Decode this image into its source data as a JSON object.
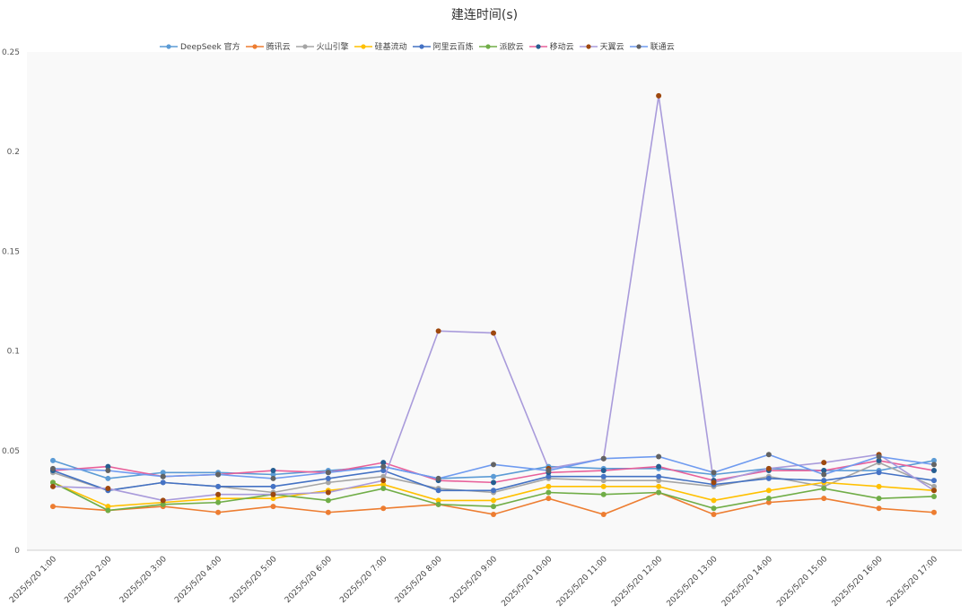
{
  "chart_data": {
    "type": "line",
    "title": "建连时间(s)",
    "xlabel": "",
    "ylabel": "",
    "ylim": [
      0,
      0.25
    ],
    "yticks": [
      "0",
      "0.05",
      "0.1",
      "0.15",
      "0.2",
      "0.25"
    ],
    "ytick_values": [
      0,
      0.05,
      0.1,
      0.15,
      0.2,
      0.25
    ],
    "legend_position": "top",
    "grid": false,
    "categories": [
      "2025/5/20 1:00",
      "2025/5/20 2:00",
      "2025/5/20 3:00",
      "2025/5/20 4:00",
      "2025/5/20 5:00",
      "2025/5/20 6:00",
      "2025/5/20 7:00",
      "2025/5/20 8:00",
      "2025/5/20 9:00",
      "2025/5/20 10:00",
      "2025/5/20 11:00",
      "2025/5/20 12:00",
      "2025/5/20 13:00",
      "2025/5/20 14:00",
      "2025/5/20 15:00",
      "2025/5/20 16:00",
      "2025/5/20 17:00"
    ],
    "series": [
      {
        "name": "DeepSeek 官方",
        "line_color": "#5B9BD5",
        "marker_color": "#5B9BD5",
        "values": [
          0.045,
          0.036,
          0.039,
          0.039,
          0.038,
          0.04,
          0.042,
          0.036,
          0.037,
          0.042,
          0.041,
          0.041,
          0.038,
          0.041,
          0.04,
          0.04,
          0.045
        ]
      },
      {
        "name": "腾讯云",
        "line_color": "#ED7D31",
        "marker_color": "#ED7D31",
        "values": [
          0.022,
          0.02,
          0.022,
          0.019,
          0.022,
          0.019,
          0.021,
          0.023,
          0.018,
          0.026,
          0.018,
          0.029,
          0.018,
          0.024,
          0.026,
          0.021,
          0.019
        ]
      },
      {
        "name": "火山引擎",
        "line_color": "#A5A5A5",
        "marker_color": "#A5A5A5",
        "values": [
          0.039,
          0.03,
          0.034,
          0.032,
          0.029,
          0.034,
          0.037,
          0.031,
          0.029,
          0.036,
          0.035,
          0.035,
          0.032,
          0.037,
          0.032,
          0.044,
          0.032
        ]
      },
      {
        "name": "硅基流动",
        "line_color": "#FFC000",
        "marker_color": "#FFC000",
        "values": [
          0.034,
          0.022,
          0.024,
          0.026,
          0.026,
          0.03,
          0.033,
          0.025,
          0.025,
          0.032,
          0.032,
          0.032,
          0.025,
          0.03,
          0.034,
          0.032,
          0.03
        ]
      },
      {
        "name": "阿里云百炼",
        "line_color": "#4472C4",
        "marker_color": "#4472C4",
        "values": [
          0.04,
          0.03,
          0.034,
          0.032,
          0.032,
          0.036,
          0.04,
          0.03,
          0.03,
          0.037,
          0.037,
          0.037,
          0.033,
          0.036,
          0.035,
          0.039,
          0.035
        ]
      },
      {
        "name": "派欧云",
        "line_color": "#70AD47",
        "marker_color": "#70AD47",
        "values": [
          0.034,
          0.02,
          0.023,
          0.024,
          0.028,
          0.025,
          0.031,
          0.023,
          0.022,
          0.029,
          0.028,
          0.029,
          0.021,
          0.026,
          0.031,
          0.026,
          0.027
        ]
      },
      {
        "name": "移动云",
        "line_color": "#E8609A",
        "marker_color": "#255E91",
        "values": [
          0.04,
          0.042,
          0.037,
          0.038,
          0.04,
          0.039,
          0.044,
          0.035,
          0.034,
          0.039,
          0.04,
          0.042,
          0.035,
          0.04,
          0.04,
          0.045,
          0.04
        ]
      },
      {
        "name": "天翼云",
        "line_color": "#A99BDB",
        "marker_color": "#9E480E",
        "values": [
          0.032,
          0.031,
          0.025,
          0.028,
          0.028,
          0.029,
          0.035,
          0.11,
          0.109,
          0.041,
          0.046,
          0.228,
          0.034,
          0.041,
          0.044,
          0.048,
          0.03
        ]
      },
      {
        "name": "联通云",
        "line_color": "#6F9BF0",
        "marker_color": "#636363",
        "values": [
          0.041,
          0.04,
          0.037,
          0.038,
          0.036,
          0.039,
          0.042,
          0.036,
          0.043,
          0.04,
          0.046,
          0.047,
          0.039,
          0.048,
          0.038,
          0.047,
          0.043
        ]
      }
    ]
  }
}
